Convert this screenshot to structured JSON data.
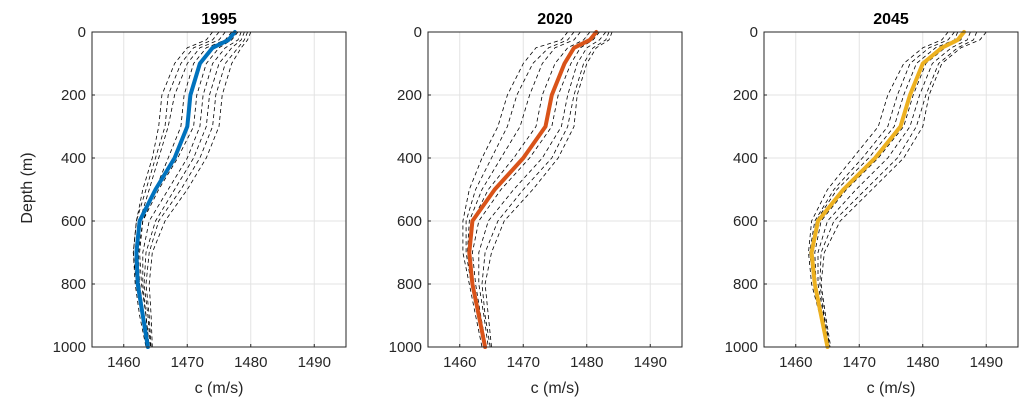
{
  "chart_data": {
    "type": "line",
    "ylabel": "Depth (m)",
    "xlabel": "c (m/s)",
    "xlim": [
      1455,
      1495
    ],
    "ylim": [
      0,
      1000
    ],
    "y_reversed": true,
    "grid": true,
    "xticks": [
      "1460",
      "1470",
      "1480",
      "1490"
    ],
    "yticks": [
      "0",
      "200",
      "400",
      "600",
      "800",
      "1000"
    ],
    "depths": [
      0,
      25,
      50,
      100,
      200,
      300,
      400,
      500,
      600,
      700,
      800,
      900,
      1000
    ],
    "ensemble_style": {
      "color": "#000000",
      "dash": "dashed"
    },
    "panels": [
      {
        "title": "1995",
        "mean_color": "#0072BD",
        "mean": [
          1477.5,
          1476.5,
          1474,
          1472,
          1470.5,
          1470,
          1468,
          1465,
          1462.5,
          1462,
          1462.2,
          1463,
          1463.8
        ],
        "ensemble": [
          [
            1474,
            1473,
            1470,
            1468,
            1466,
            1465.5,
            1464.5,
            1463,
            1462,
            1461.5,
            1461.8,
            1462.5,
            1463.5
          ],
          [
            1475,
            1474,
            1471,
            1469,
            1467,
            1466.5,
            1465,
            1463.5,
            1462,
            1461.5,
            1462,
            1463,
            1463.8
          ],
          [
            1476,
            1475,
            1472,
            1470,
            1468,
            1467,
            1465.5,
            1464,
            1462.5,
            1462,
            1462.5,
            1463.2,
            1464
          ],
          [
            1477,
            1476,
            1473,
            1471,
            1469.5,
            1469,
            1467,
            1465,
            1463,
            1462.3,
            1462.5,
            1463,
            1463.8
          ],
          [
            1478,
            1477,
            1475,
            1473,
            1471.5,
            1471,
            1468.5,
            1465.5,
            1463,
            1462.5,
            1462.8,
            1463.5,
            1464
          ],
          [
            1478.5,
            1478,
            1476,
            1474,
            1472.5,
            1472,
            1470,
            1467,
            1464,
            1463,
            1463,
            1463.5,
            1464
          ],
          [
            1479,
            1478.5,
            1477,
            1475,
            1473.5,
            1473,
            1471,
            1468,
            1465,
            1463.5,
            1463.2,
            1463.8,
            1464.2
          ],
          [
            1479.5,
            1479,
            1478,
            1476,
            1474.5,
            1474,
            1472,
            1469,
            1465.5,
            1464,
            1463.5,
            1464,
            1464.3
          ],
          [
            1480,
            1479.5,
            1478.5,
            1477,
            1475.5,
            1475,
            1473,
            1470,
            1466.5,
            1464.5,
            1464,
            1464.3,
            1464.5
          ]
        ]
      },
      {
        "title": "2020",
        "mean_color": "#D95319",
        "mean": [
          1481.5,
          1480.5,
          1478,
          1476.5,
          1474.5,
          1473.5,
          1470,
          1465.5,
          1462,
          1461.5,
          1462,
          1463,
          1464
        ],
        "ensemble": [
          [
            1477,
            1476,
            1472,
            1470,
            1467.5,
            1466,
            1463.5,
            1461.5,
            1460.5,
            1460.5,
            1461.5,
            1462.5,
            1463.5
          ],
          [
            1478,
            1477,
            1474,
            1471.5,
            1469,
            1467.5,
            1465,
            1462.5,
            1461,
            1461,
            1461.8,
            1462.8,
            1463.8
          ],
          [
            1479,
            1478,
            1475,
            1473,
            1471,
            1469.5,
            1466.5,
            1463.5,
            1461.5,
            1461.2,
            1462,
            1463,
            1464
          ],
          [
            1480.5,
            1479.5,
            1477,
            1475,
            1473,
            1472,
            1468.5,
            1464.5,
            1462,
            1461.5,
            1462,
            1463,
            1464
          ],
          [
            1482,
            1481,
            1479,
            1477.5,
            1475.5,
            1474.5,
            1471,
            1466.5,
            1463,
            1462,
            1462.5,
            1463.3,
            1464.2
          ],
          [
            1483,
            1482,
            1480,
            1478.5,
            1477,
            1476,
            1473,
            1468.5,
            1464.5,
            1463,
            1463,
            1463.8,
            1464.5
          ],
          [
            1483.5,
            1483,
            1481,
            1479.5,
            1478,
            1477,
            1474.5,
            1470,
            1466,
            1464,
            1463.5,
            1464,
            1464.8
          ],
          [
            1484,
            1483.5,
            1481.5,
            1480,
            1478.5,
            1478,
            1475.5,
            1471.5,
            1467,
            1465,
            1464,
            1464.5,
            1465
          ]
        ]
      },
      {
        "title": "2045",
        "mean_color": "#EDB120",
        "mean": [
          1486.5,
          1485.5,
          1483,
          1480,
          1478,
          1476.5,
          1472.5,
          1467.5,
          1463.5,
          1462.5,
          1463,
          1464,
          1465
        ],
        "ensemble": [
          [
            1484,
            1483,
            1480,
            1477,
            1474.5,
            1473,
            1469,
            1465,
            1462.5,
            1462,
            1462.5,
            1463.8,
            1464.8
          ],
          [
            1485,
            1484,
            1481,
            1478,
            1476,
            1474.5,
            1470.5,
            1466,
            1463,
            1462.2,
            1462.8,
            1464,
            1465
          ],
          [
            1485.5,
            1485,
            1482,
            1479,
            1477,
            1475.5,
            1471.5,
            1466.5,
            1463.2,
            1462.5,
            1463,
            1464,
            1465
          ],
          [
            1486.5,
            1486,
            1483.5,
            1480.5,
            1478.5,
            1477,
            1473,
            1468,
            1464,
            1463,
            1463.2,
            1464.2,
            1465.2
          ],
          [
            1487.5,
            1487,
            1484.5,
            1481.5,
            1479.5,
            1478,
            1474.5,
            1469.5,
            1465,
            1463.5,
            1463.5,
            1464.4,
            1465.3
          ],
          [
            1488.5,
            1488,
            1485.5,
            1482.5,
            1480.5,
            1479,
            1476,
            1471,
            1466,
            1464,
            1463.8,
            1464.5,
            1465.4
          ],
          [
            1490,
            1489,
            1486,
            1483,
            1481,
            1480,
            1477,
            1472,
            1467,
            1464.5,
            1464,
            1464.7,
            1465.5
          ]
        ]
      }
    ]
  }
}
